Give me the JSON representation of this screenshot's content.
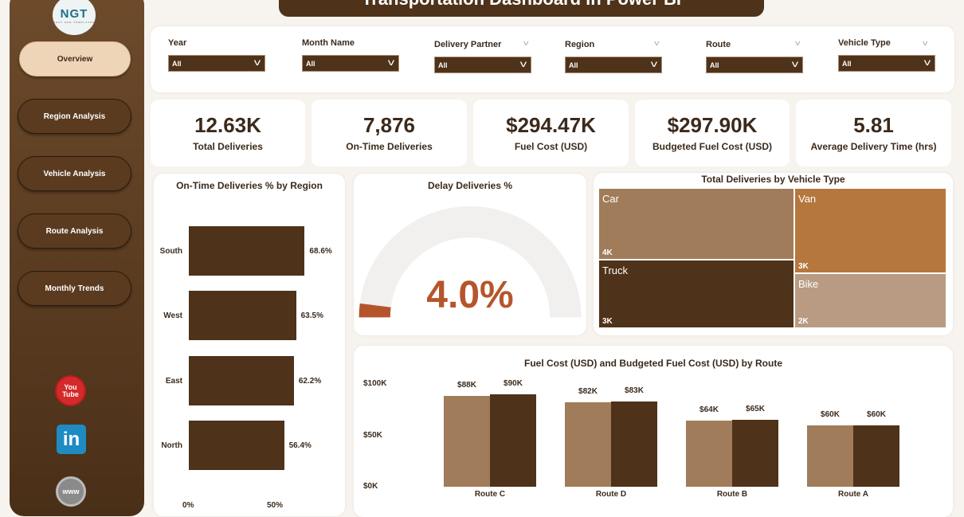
{
  "title": "Transportation Dashboard in Power BI",
  "logo": {
    "text": "NGT",
    "subtext": "NEXT GEN TEMPLATES"
  },
  "nav": [
    {
      "label": "Overview",
      "active": true
    },
    {
      "label": "Region Analysis"
    },
    {
      "label": "Vehicle Analysis"
    },
    {
      "label": "Route Analysis"
    },
    {
      "label": "Monthly Trends"
    }
  ],
  "social": [
    {
      "icon": "youtube-icon",
      "label": "You Tube"
    },
    {
      "icon": "linkedin-icon",
      "label": "in"
    },
    {
      "icon": "globe-www-icon",
      "label": "www"
    }
  ],
  "filters": [
    {
      "label": "Year",
      "value": "All"
    },
    {
      "label": "Month Name",
      "value": "All"
    },
    {
      "label": "Delivery Partner",
      "value": "All"
    },
    {
      "label": "Region",
      "value": "All"
    },
    {
      "label": "Route",
      "value": "All"
    },
    {
      "label": "Vehicle Type",
      "value": "All"
    }
  ],
  "kpis": [
    {
      "value": "12.63K",
      "label": "Total Deliveries"
    },
    {
      "value": "7,876",
      "label": "On-Time Deliveries"
    },
    {
      "value": "$294.47K",
      "label": "Fuel Cost (USD)"
    },
    {
      "value": "$297.90K",
      "label": "Budgeted Fuel Cost (USD)"
    },
    {
      "value": "5.81",
      "label": "Average Delivery Time (hrs)"
    }
  ],
  "colors": {
    "dark_brown": "#4e3219",
    "light_brown": "#a07c5a",
    "van": "#b5773e",
    "bike": "#b89b82",
    "gauge": "#b5552b",
    "accent_light": "#efd5b8"
  },
  "chart_data": [
    {
      "type": "bar",
      "orientation": "horizontal",
      "title": "On-Time Deliveries % by Region",
      "categories": [
        "South",
        "West",
        "East",
        "North"
      ],
      "values": [
        68.6,
        63.5,
        62.2,
        56.4
      ],
      "labels": [
        "68.6%",
        "63.5%",
        "62.2%",
        "56.4%"
      ],
      "xticks": [
        "0%",
        "50%"
      ],
      "xlim": [
        0,
        100
      ]
    },
    {
      "type": "gauge",
      "title": "Delay Deliveries %",
      "value": 4.0,
      "label": "4.0%",
      "min": 0,
      "max": 100
    },
    {
      "type": "treemap",
      "title": "Total Deliveries by Vehicle Type",
      "items": [
        {
          "name": "Car",
          "label": "4K"
        },
        {
          "name": "Van",
          "label": "3K"
        },
        {
          "name": "Truck",
          "label": "3K"
        },
        {
          "name": "Bike",
          "label": "2K"
        }
      ]
    },
    {
      "type": "bar",
      "title": "Fuel Cost (USD) and Budgeted Fuel Cost (USD) by Route",
      "categories": [
        "Route C",
        "Route D",
        "Route B",
        "Route A"
      ],
      "series": [
        {
          "values": [
            88,
            82,
            64,
            60
          ],
          "labels": [
            "$88K",
            "$82K",
            "$64K",
            "$60K"
          ]
        },
        {
          "values": [
            90,
            83,
            65,
            60
          ],
          "labels": [
            "$90K",
            "$83K",
            "$65K",
            "$60K"
          ]
        }
      ],
      "unit": "K USD",
      "yticks": [
        "$0K",
        "$50K",
        "$100K"
      ],
      "ylim": [
        0,
        100
      ]
    }
  ]
}
